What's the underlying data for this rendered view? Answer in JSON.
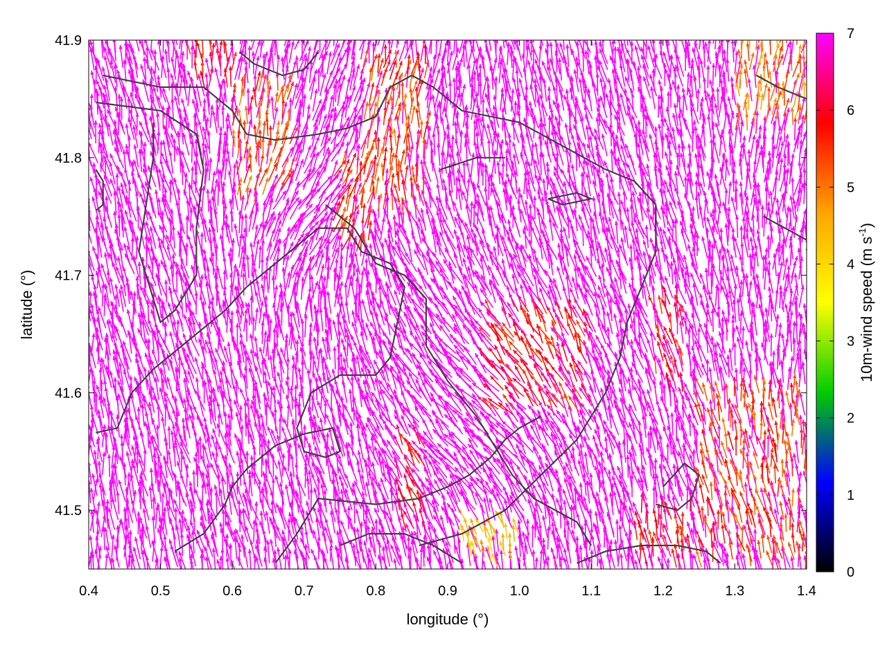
{
  "chart_data": {
    "type": "vector-field",
    "title": "",
    "xlabel": "longitude (°)",
    "ylabel": "latitude (°)",
    "xlim": [
      0.4,
      1.4
    ],
    "ylim": [
      41.45,
      41.9
    ],
    "xticks": [
      "0.4",
      "0.5",
      "0.6",
      "0.7",
      "0.8",
      "0.9",
      "1.0",
      "1.1",
      "1.2",
      "1.3",
      "1.4"
    ],
    "xtick_values": [
      0.4,
      0.5,
      0.6,
      0.7,
      0.8,
      0.9,
      1.0,
      1.1,
      1.2,
      1.3,
      1.4
    ],
    "yticks": [
      "41.5",
      "41.6",
      "41.7",
      "41.8",
      "41.9"
    ],
    "ytick_values": [
      41.5,
      41.6,
      41.7,
      41.8,
      41.9
    ],
    "colorbar": {
      "label_prefix": "10m-wind speed (m s",
      "label_sup": "-1",
      "label_suffix": ")",
      "min": 0,
      "max": 7,
      "ticks": [
        "0",
        "1",
        "2",
        "3",
        "4",
        "5",
        "6",
        "7"
      ],
      "colormap": [
        "#000000",
        "#0000ff",
        "#00cc00",
        "#ffff00",
        "#ffa500",
        "#ff0000",
        "#ff00ff"
      ]
    },
    "grid": false,
    "arrow_color_dominant": "#ff00ff",
    "boundary_color": "#404040",
    "arrow_grid": {
      "dlon": 0.01,
      "dlat": 0.008
    },
    "slow_zones": [
      {
        "lon": [
          0.6,
          0.68
        ],
        "lat": [
          41.76,
          41.86
        ],
        "speed": 5.3
      },
      {
        "lon": [
          0.78,
          0.87
        ],
        "lat": [
          41.75,
          41.88
        ],
        "speed": 5.4
      },
      {
        "lon": [
          0.54,
          0.6
        ],
        "lat": [
          41.85,
          41.9
        ],
        "speed": 5.8
      },
      {
        "lon": [
          0.74,
          0.79
        ],
        "lat": [
          41.72,
          41.8
        ],
        "speed": 5.6
      },
      {
        "lon": [
          0.96,
          1.1
        ],
        "lat": [
          41.58,
          41.67
        ],
        "speed": 5.7
      },
      {
        "lon": [
          1.25,
          1.4
        ],
        "lat": [
          41.45,
          41.6
        ],
        "speed": 5.4
      },
      {
        "lon": [
          1.3,
          1.4
        ],
        "lat": [
          41.82,
          41.9
        ],
        "speed": 5.0
      },
      {
        "lon": [
          0.92,
          1.0
        ],
        "lat": [
          41.45,
          41.49
        ],
        "speed": 4.4
      },
      {
        "lon": [
          1.16,
          1.24
        ],
        "lat": [
          41.45,
          41.5
        ],
        "speed": 5.8
      },
      {
        "lon": [
          1.19,
          1.23
        ],
        "lat": [
          41.6,
          41.68
        ],
        "speed": 5.7
      },
      {
        "lon": [
          0.83,
          0.87
        ],
        "lat": [
          41.48,
          41.56
        ],
        "speed": 5.9
      }
    ],
    "boundaries": [
      [
        [
          0.42,
          41.87
        ],
        [
          0.5,
          41.86
        ],
        [
          0.56,
          41.86
        ],
        [
          0.6,
          41.84
        ],
        [
          0.62,
          41.82
        ],
        [
          0.66,
          41.815
        ],
        [
          0.72,
          41.82
        ],
        [
          0.76,
          41.825
        ],
        [
          0.8,
          41.835
        ],
        [
          0.82,
          41.86
        ],
        [
          0.85,
          41.87
        ],
        [
          0.88,
          41.86
        ],
        [
          0.92,
          41.84
        ],
        [
          1.0,
          41.83
        ],
        [
          1.06,
          41.81
        ],
        [
          1.12,
          41.79
        ],
        [
          1.16,
          41.78
        ],
        [
          1.19,
          41.76
        ],
        [
          1.19,
          41.72
        ],
        [
          1.17,
          41.69
        ],
        [
          1.15,
          41.66
        ],
        [
          1.14,
          41.63
        ],
        [
          1.12,
          41.6
        ],
        [
          1.08,
          41.56
        ],
        [
          1.03,
          41.53
        ],
        [
          0.98,
          41.5
        ],
        [
          0.92,
          41.48
        ],
        [
          0.86,
          41.47
        ]
      ],
      [
        [
          0.41,
          41.847
        ],
        [
          0.5,
          41.84
        ],
        [
          0.55,
          41.82
        ],
        [
          0.56,
          41.79
        ],
        [
          0.55,
          41.74
        ],
        [
          0.55,
          41.7
        ],
        [
          0.52,
          41.67
        ],
        [
          0.5,
          41.66
        ],
        [
          0.49,
          41.68
        ],
        [
          0.47,
          41.72
        ],
        [
          0.48,
          41.76
        ],
        [
          0.49,
          41.8
        ],
        [
          0.49,
          41.83
        ]
      ],
      [
        [
          0.41,
          41.566
        ],
        [
          0.44,
          41.57
        ],
        [
          0.46,
          41.6
        ],
        [
          0.49,
          41.62
        ],
        [
          0.53,
          41.64
        ],
        [
          0.59,
          41.67
        ],
        [
          0.62,
          41.69
        ],
        [
          0.66,
          41.71
        ],
        [
          0.7,
          41.73
        ],
        [
          0.72,
          41.74
        ],
        [
          0.76,
          41.74
        ],
        [
          0.78,
          41.72
        ],
        [
          0.82,
          41.71
        ],
        [
          0.84,
          41.69
        ],
        [
          0.83,
          41.66
        ],
        [
          0.82,
          41.63
        ],
        [
          0.8,
          41.615
        ],
        [
          0.75,
          41.615
        ],
        [
          0.71,
          41.6
        ],
        [
          0.69,
          41.57
        ],
        [
          0.7,
          41.55
        ],
        [
          0.73,
          41.545
        ],
        [
          0.75,
          41.55
        ],
        [
          0.74,
          41.57
        ],
        [
          0.7,
          41.565
        ],
        [
          0.66,
          41.555
        ],
        [
          0.62,
          41.535
        ],
        [
          0.6,
          41.52
        ],
        [
          0.59,
          41.505
        ],
        [
          0.56,
          41.48
        ],
        [
          0.52,
          41.465
        ]
      ],
      [
        [
          0.73,
          41.76
        ],
        [
          0.77,
          41.74
        ],
        [
          0.8,
          41.71
        ],
        [
          0.84,
          41.7
        ],
        [
          0.87,
          41.68
        ],
        [
          0.87,
          41.64
        ],
        [
          0.9,
          41.61
        ],
        [
          0.94,
          41.58
        ],
        [
          0.97,
          41.55
        ],
        [
          0.99,
          41.53
        ],
        [
          1.02,
          41.51
        ],
        [
          1.05,
          41.5
        ],
        [
          1.08,
          41.49
        ],
        [
          1.1,
          41.47
        ]
      ],
      [
        [
          0.66,
          41.455
        ],
        [
          0.69,
          41.48
        ],
        [
          0.72,
          41.51
        ],
        [
          0.8,
          41.505
        ],
        [
          0.86,
          41.51
        ],
        [
          0.9,
          41.52
        ],
        [
          0.93,
          41.53
        ],
        [
          0.96,
          41.545
        ],
        [
          0.98,
          41.56
        ],
        [
          1.0,
          41.57
        ],
        [
          1.03,
          41.58
        ]
      ],
      [
        [
          0.75,
          41.47
        ],
        [
          0.79,
          41.48
        ],
        [
          0.84,
          41.48
        ],
        [
          0.88,
          41.47
        ],
        [
          0.92,
          41.455
        ]
      ],
      [
        [
          0.61,
          41.89
        ],
        [
          0.63,
          41.88
        ],
        [
          0.67,
          41.87
        ],
        [
          0.7,
          41.875
        ],
        [
          0.72,
          41.89
        ]
      ],
      [
        [
          0.89,
          41.79
        ],
        [
          0.94,
          41.8
        ],
        [
          0.98,
          41.8
        ]
      ],
      [
        [
          1.34,
          41.75
        ],
        [
          1.37,
          41.74
        ],
        [
          1.4,
          41.73
        ]
      ],
      [
        [
          1.33,
          41.87
        ],
        [
          1.36,
          41.86
        ],
        [
          1.4,
          41.85
        ]
      ],
      [
        [
          1.04,
          41.765
        ],
        [
          1.08,
          41.77
        ],
        [
          1.1,
          41.765
        ],
        [
          1.06,
          41.76
        ],
        [
          1.04,
          41.765
        ]
      ],
      [
        [
          0.41,
          41.755
        ],
        [
          0.42,
          41.76
        ],
        [
          0.42,
          41.78
        ],
        [
          0.41,
          41.79
        ]
      ],
      [
        [
          1.19,
          41.505
        ],
        [
          1.22,
          41.5
        ],
        [
          1.24,
          41.51
        ],
        [
          1.25,
          41.53
        ],
        [
          1.23,
          41.54
        ],
        [
          1.2,
          41.52
        ]
      ],
      [
        [
          1.08,
          41.455
        ],
        [
          1.12,
          41.465
        ],
        [
          1.17,
          41.47
        ],
        [
          1.22,
          41.47
        ],
        [
          1.26,
          41.465
        ],
        [
          1.28,
          41.455
        ]
      ]
    ]
  }
}
